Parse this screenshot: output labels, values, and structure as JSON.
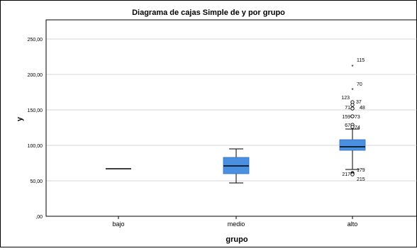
{
  "chart_data": {
    "type": "boxplot",
    "title": "Diagrama de cajas Simple de y por grupo",
    "xlabel": "grupo",
    "ylabel": "y",
    "ylim": [
      0,
      250
    ],
    "yticks": [
      0,
      50,
      100,
      150,
      200,
      250
    ],
    "ytick_labels": [
      ",00",
      "50,00",
      "100,00",
      "150,00",
      "200,00",
      "250,00"
    ],
    "grid": "horizontal",
    "categories": [
      "bajo",
      "medio",
      "alto"
    ],
    "colors": {
      "box": "#4a90e2",
      "median": "#000000",
      "grid": "#d4d4d4"
    },
    "boxes": [
      {
        "group": "bajo",
        "whisker_low": 67,
        "q1": 67,
        "median": 67,
        "q3": 67,
        "whisker_high": 67
      },
      {
        "group": "medio",
        "whisker_low": 47,
        "q1": 60,
        "median": 71,
        "q3": 83,
        "whisker_high": 95
      },
      {
        "group": "alto",
        "whisker_low": 66,
        "q1": 93,
        "median": 98,
        "q3": 108,
        "whisker_high": 123
      }
    ],
    "outliers": [
      {
        "group": "alto",
        "y": 211,
        "marker": "star",
        "label": "115"
      },
      {
        "group": "alto",
        "y": 178,
        "marker": "star",
        "label": "70"
      },
      {
        "group": "alto",
        "y": 161,
        "marker": "circle",
        "label": "123"
      },
      {
        "group": "alto",
        "y": 157,
        "marker": "circle",
        "label": "37"
      },
      {
        "group": "alto",
        "y": 152,
        "marker": "circle",
        "label": "71"
      },
      {
        "group": "alto",
        "y": 152,
        "marker": "circle",
        "label": "48"
      },
      {
        "group": "alto",
        "y": 141,
        "marker": "circle",
        "label": "159"
      },
      {
        "group": "alto",
        "y": 141,
        "marker": "circle",
        "label": "73"
      },
      {
        "group": "alto",
        "y": 129,
        "marker": "circle",
        "label": "67"
      },
      {
        "group": "alto",
        "y": 126,
        "marker": "circle",
        "label": "74"
      },
      {
        "group": "alto",
        "y": 61,
        "marker": "circle",
        "label": "179"
      },
      {
        "group": "alto",
        "y": 60,
        "marker": "circle",
        "label": "217"
      },
      {
        "group": "alto",
        "y": 59,
        "marker": "circle",
        "label": "215"
      }
    ]
  }
}
